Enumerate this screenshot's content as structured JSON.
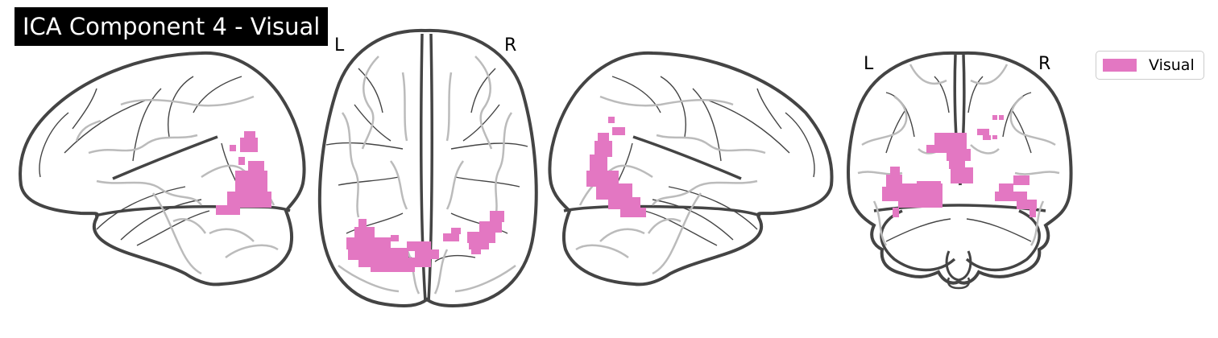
{
  "figure": {
    "title": "ICA Component 4 - Visual",
    "views": [
      {
        "id": "sagittal-left",
        "orientation_labels": []
      },
      {
        "id": "axial",
        "orientation_labels": [
          "L",
          "R"
        ]
      },
      {
        "id": "sagittal-right",
        "orientation_labels": []
      },
      {
        "id": "coronal",
        "orientation_labels": [
          "L",
          "R"
        ]
      }
    ],
    "legend": {
      "items": [
        {
          "label": "Visual",
          "color": "#e377c2"
        }
      ]
    },
    "colors": {
      "background": "#ffffff",
      "title_bg": "#000000",
      "title_fg": "#ffffff",
      "outline": "#444444",
      "inner_gyri": "#bbbbbb",
      "blob": "#e377c2"
    }
  }
}
